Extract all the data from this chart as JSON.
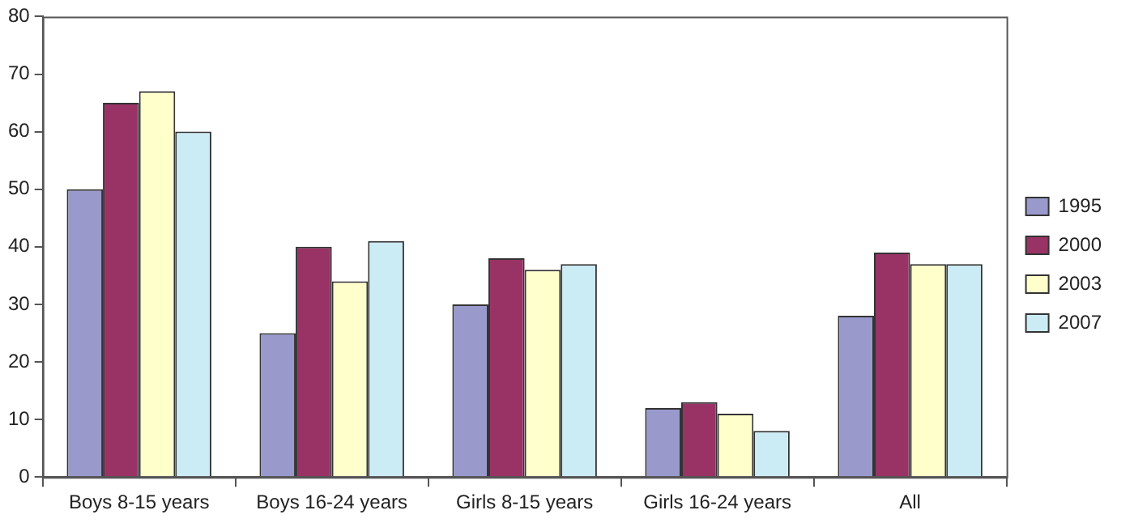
{
  "chart_data": {
    "type": "bar",
    "categories": [
      "Boys 8-15 years",
      "Boys 16-24 years",
      "Girls 8-15 years",
      "Girls 16-24 years",
      "All"
    ],
    "series": [
      {
        "name": "1995",
        "color": "#9999cc",
        "values": [
          50,
          25,
          30,
          12,
          28
        ]
      },
      {
        "name": "2000",
        "color": "#993366",
        "values": [
          65,
          40,
          38,
          13,
          39
        ]
      },
      {
        "name": "2003",
        "color": "#ffffcc",
        "values": [
          67,
          34,
          36,
          11,
          37
        ]
      },
      {
        "name": "2007",
        "color": "#ccecf5",
        "values": [
          60,
          41,
          37,
          8,
          37
        ]
      }
    ],
    "ylim": [
      0,
      80
    ],
    "yticks": [
      0,
      10,
      20,
      30,
      40,
      50,
      60,
      70,
      80
    ],
    "grid": false,
    "legend": "right"
  }
}
